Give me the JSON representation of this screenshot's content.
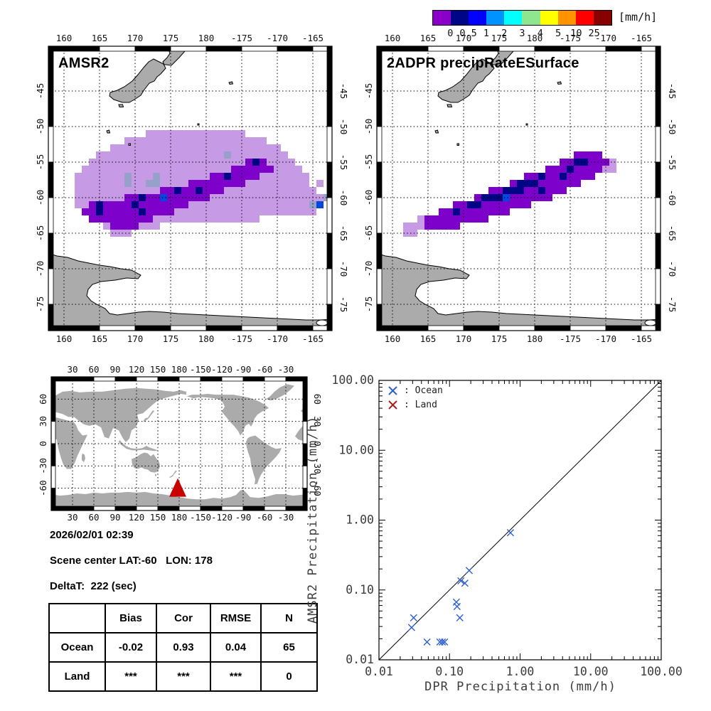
{
  "colorbar": {
    "unit_label": "[mm/h]",
    "tick_labels": [
      "0",
      "0.5",
      "1",
      "2",
      "3",
      "4",
      "5",
      "10",
      "25"
    ],
    "segment_colors": [
      "#8A00C8",
      "#000487",
      "#0000FF",
      "#0092FF",
      "#00FFFF",
      "#8EE78E",
      "#FFFF00",
      "#FF9300",
      "#FF0000",
      "#880000"
    ]
  },
  "map_axes": {
    "lon_tick_labels": [
      "160",
      "165",
      "170",
      "175",
      "180",
      "-175",
      "-170",
      "-165"
    ],
    "lon_tick_values": [
      160,
      165,
      170,
      175,
      180,
      185,
      190,
      195
    ],
    "lat_tick_labels": [
      "-45",
      "-50",
      "-55",
      "-60",
      "-65",
      "-70",
      "-75"
    ],
    "lat_tick_values": [
      -45,
      -50,
      -55,
      -60,
      -65,
      -70,
      -75
    ]
  },
  "locator_axes": {
    "lon_tick_labels": [
      "30",
      "60",
      "90",
      "120",
      "150",
      "180",
      "-150",
      "-120",
      "-90",
      "-60",
      "-30"
    ],
    "lon_tick_values": [
      30,
      60,
      90,
      120,
      150,
      180,
      210,
      240,
      270,
      300,
      330
    ],
    "lat_tick_labels": [
      "60",
      "30",
      "0",
      "-30",
      "-60"
    ],
    "lat_tick_values": [
      60,
      30,
      0,
      -30,
      -60
    ]
  },
  "info": {
    "datetime": "2026/02/01 02:39",
    "scene_center": "Scene center LAT:-60   LON: 178",
    "delta_t": "DeltaT:  222 (sec)"
  },
  "stats_table": {
    "col_headers": [
      "",
      "Bias",
      "Cor",
      "RMSE",
      "N"
    ],
    "rows": [
      [
        "Ocean",
        "-0.02",
        "0.93",
        "0.04",
        "65"
      ],
      [
        "Land",
        "***",
        "***",
        "***",
        "0"
      ]
    ]
  },
  "cell_colors": {
    "l": "#C79AE6",
    "p": "#7E00CB",
    "n": "#000487",
    "b": "#0048E0",
    "g": "#95A1C8"
  },
  "land_color": "#ABABAB",
  "chart_data": [
    {
      "id": "amsr2_map",
      "type": "heatmap",
      "title": "AMSR2",
      "lon_range": [
        157.8,
        197.7
      ],
      "lat_range": [
        -78.7,
        -38.7
      ],
      "cell_deg": 1,
      "grid_origin": {
        "lon": 162,
        "lat": -51
      },
      "grid": [
        "..........llllllllllllll............",
        ".......llllllllllllllllllll.........",
        ".....llllllllllllllllllllllll.......",
        "...llllllllllllllllllgllllllll......",
        "..llllllllllllllllllllllpnpllll.....",
        ".lllllllllllllllllllllppppppllll....",
        "lllllllglllglllllllppnpppplllllll...",
        "lllllllgllggllllpppppppplllllllll l.",
        "llllllllllllppnppnppplllllllllllll.",
        "lllllllppnppbppppppllllllllllllllllg",
        "llpnppppnppppppplllllllllllllllllgb",
        ".ppnpppppnppppllllllllllllllllllll...",
        "..ppppppppplllllllllllllll..........",
        "....lpppplll........................",
        ".....lll............................"
      ]
    },
    {
      "id": "dpr_map",
      "type": "heatmap",
      "title": "2ADPR precipRateESurface",
      "lon_range": [
        157.8,
        197.7
      ],
      "lat_range": [
        -78.7,
        -38.7
      ],
      "cell_deg": 1,
      "grid_origin": {
        "lon": 162,
        "lat": -54
      },
      "grid": [
        "........................pppp........",
        "......................ppnnpppl......",
        "....................pppnppppll......",
        ".................ppnppnpppp.........",
        "...............pnnnpppppp...........",
        "............ppnnnppnppp.............",
        "..........pnnnbpppppp...............",
        ".......ppnnppppppp..................",
        ".....ppnppppppp.....................",
        "..lppppppppp........................",
        "lllppppp............................",
        "ll.................................."
      ]
    },
    {
      "id": "locator_map",
      "type": "map",
      "marker": {
        "lon": 178,
        "lat": -60,
        "color": "#C80000",
        "symbol": "triangle"
      }
    },
    {
      "id": "scatter",
      "type": "scatter",
      "scale": "log",
      "xlabel": "DPR Precipitation (mm/h)",
      "ylabel": "AMSR2 Precipitation (mm/h)",
      "xlim": [
        0.01,
        100
      ],
      "ylim": [
        0.01,
        100
      ],
      "x_tick_labels": [
        "0.01",
        "0.10",
        "1.00",
        "10.00",
        "100.00"
      ],
      "x_tick_values": [
        0.01,
        0.1,
        1,
        10,
        100
      ],
      "y_tick_labels": [
        "100.00",
        "10.00",
        "1.00",
        "0.10",
        "0.01"
      ],
      "y_tick_values": [
        100,
        10,
        1,
        0.1,
        0.01
      ],
      "identity_line": true,
      "legend_labels": [
        ": Ocean",
        ": Land"
      ],
      "series": [
        {
          "name": "Ocean",
          "color": "#2E5FD0",
          "points": [
            [
              0.73,
              0.66
            ],
            [
              0.19,
              0.19
            ],
            [
              0.145,
              0.135
            ],
            [
              0.165,
              0.125
            ],
            [
              0.125,
              0.067
            ],
            [
              0.128,
              0.058
            ],
            [
              0.14,
              0.04
            ],
            [
              0.031,
              0.04
            ],
            [
              0.029,
              0.029
            ],
            [
              0.048,
              0.018
            ],
            [
              0.073,
              0.018
            ],
            [
              0.079,
              0.018
            ],
            [
              0.085,
              0.018
            ]
          ]
        },
        {
          "name": "Land",
          "color": "#B01C1C",
          "points": []
        }
      ]
    }
  ]
}
